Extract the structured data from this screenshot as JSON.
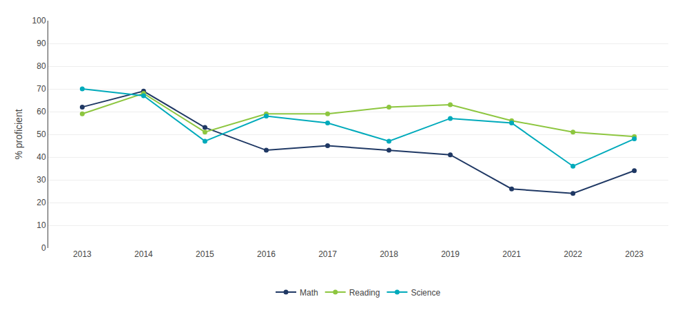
{
  "chart_data": {
    "type": "line",
    "categories": [
      "2013",
      "2014",
      "2015",
      "2016",
      "2017",
      "2018",
      "2019",
      "2021",
      "2022",
      "2023"
    ],
    "series": [
      {
        "name": "Math",
        "color": "#1f3864",
        "values": [
          62,
          69,
          53,
          43,
          45,
          43,
          41,
          26,
          24,
          34
        ]
      },
      {
        "name": "Reading",
        "color": "#8dc63f",
        "values": [
          59,
          68,
          51,
          59,
          59,
          62,
          63,
          56,
          51,
          49
        ]
      },
      {
        "name": "Science",
        "color": "#00aabb",
        "values": [
          70,
          67,
          47,
          58,
          55,
          47,
          57,
          55,
          36,
          48
        ]
      }
    ],
    "y_label": "% proficient",
    "ylim": [
      0,
      100
    ],
    "yticks": [
      0,
      10,
      20,
      30,
      40,
      50,
      60,
      70,
      80,
      90,
      100
    ],
    "grid": true,
    "legend": "bottom",
    "marker": "circle"
  }
}
